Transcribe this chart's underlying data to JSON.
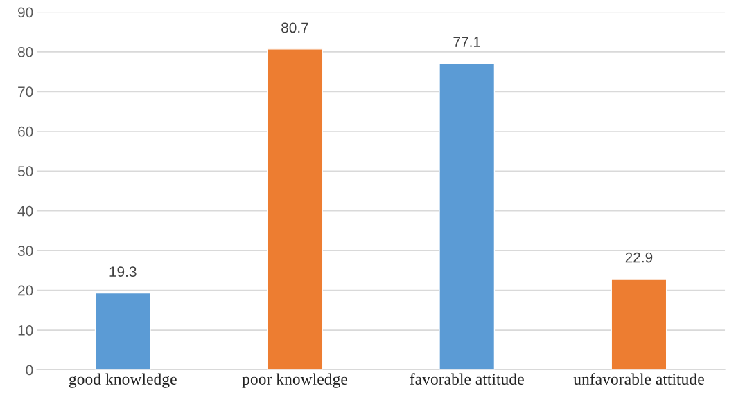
{
  "chart_data": {
    "type": "bar",
    "categories": [
      "good knowledge",
      "poor knowledge",
      "favorable attitude",
      "unfavorable attitude"
    ],
    "values": [
      19.3,
      80.7,
      77.1,
      22.9
    ],
    "colors": [
      "#5b9bd5",
      "#ed7d31",
      "#5b9bd5",
      "#ed7d31"
    ],
    "ylim": [
      0,
      90
    ],
    "yticks": [
      0,
      10,
      20,
      30,
      40,
      50,
      60,
      70,
      80,
      90
    ],
    "grid": "y",
    "data_labels": true
  }
}
